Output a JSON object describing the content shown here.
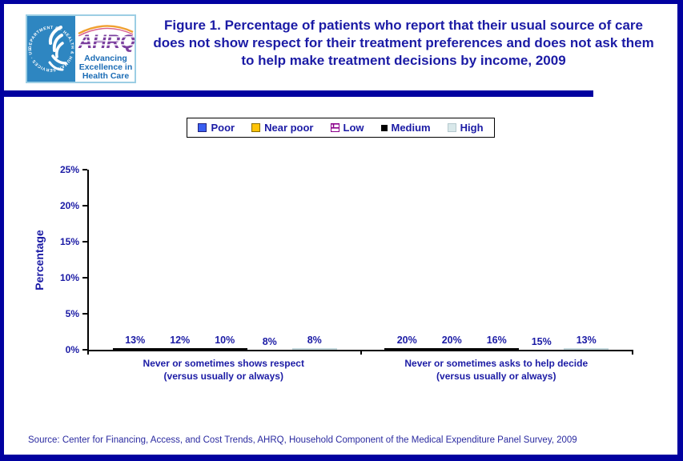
{
  "header": {
    "title": "Figure 1. Percentage of patients who report that their usual source of care does not show respect for their treatment preferences and does not ask them to help make treatment decisions by income, 2009",
    "logo": {
      "org": "AHRQ",
      "seal_text": "DEPARTMENT OF HEALTH & HUMAN SERVICES · USA",
      "tagline_lines": [
        "Advancing",
        "Excellence in",
        "Health Care"
      ]
    }
  },
  "source_line": "Source: Center for Financing, Access, and Cost Trends, AHRQ, Household Component of the Medical Expenditure Panel Survey, 2009",
  "colors": {
    "navy_text": "#1B1BA5",
    "frame_border": "#0101A0",
    "poor": "#3A5FF1",
    "near_poor": "#FFC408",
    "low_mortar": "#8B008B",
    "medium": "#000000",
    "high": "#D9E8EA"
  },
  "chart_data": {
    "type": "bar",
    "title": "Figure 1. Percentage of patients who report that their usual source of care does not show respect for their treatment preferences and does not ask them to help make treatment decisions by income, 2009",
    "xlabel": "",
    "ylabel": "Percentage",
    "ylim": [
      0,
      25
    ],
    "ytick_labels": [
      "0%",
      "5%",
      "10%",
      "15%",
      "20%",
      "25%"
    ],
    "grid": false,
    "legend_position": "top-center",
    "categories": [
      {
        "line1": "Never or sometimes shows respect",
        "line2": "(versus usually or always)"
      },
      {
        "line1": "Never or sometimes asks to help decide",
        "line2": "(versus  usually or always)"
      }
    ],
    "series": [
      {
        "key": "poor",
        "name": "Poor",
        "values": [
          13,
          20
        ],
        "value_labels": [
          "13%",
          "20%"
        ]
      },
      {
        "key": "near_poor",
        "name": "Near poor",
        "values": [
          12,
          20
        ],
        "value_labels": [
          "12%",
          "20%"
        ]
      },
      {
        "key": "low",
        "name": "Low",
        "values": [
          10,
          16
        ],
        "value_labels": [
          "10%",
          "16%"
        ]
      },
      {
        "key": "medium",
        "name": "Medium",
        "values": [
          8,
          15
        ],
        "value_labels": [
          "8%",
          "15%"
        ]
      },
      {
        "key": "high",
        "name": "High",
        "values": [
          8,
          13
        ],
        "value_labels": [
          "8%",
          "13%"
        ]
      }
    ],
    "plotted_heights": [
      [
        12.6,
        11.6,
        10.3,
        7.5,
        7.9
      ],
      [
        20.0,
        19.6,
        16.2,
        15.2,
        13.0
      ]
    ]
  }
}
